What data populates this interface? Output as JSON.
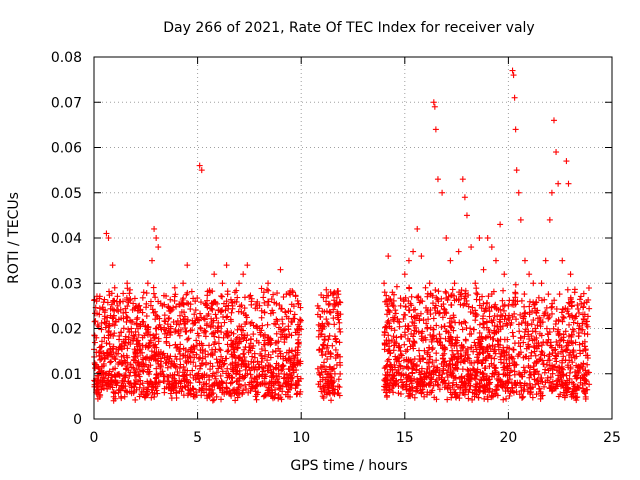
{
  "chart_data": {
    "type": "scatter",
    "title": "Day 266 of 2021, Rate Of TEC Index for receiver valy",
    "xlabel": "GPS time / hours",
    "ylabel": "ROTI / TECUs",
    "xlim": [
      0,
      25
    ],
    "ylim": [
      0,
      0.08
    ],
    "xticks": [
      0,
      5,
      10,
      15,
      20,
      25
    ],
    "xtick_labels": [
      "0",
      "5",
      "10",
      "15",
      "20",
      "25"
    ],
    "yticks": [
      0,
      0.01,
      0.02,
      0.03,
      0.04,
      0.05,
      0.06,
      0.07,
      0.08
    ],
    "ytick_labels": [
      "0",
      "0.01",
      "0.02",
      "0.03",
      "0.04",
      "0.05",
      "0.06",
      "0.07",
      "0.08"
    ],
    "grid": true,
    "marker": "+",
    "color": "#ff0000",
    "series": [
      {
        "name": "ROTI",
        "points": [
          [
            0.1,
            0.012
          ],
          [
            0.3,
            0.015
          ],
          [
            0.5,
            0.018
          ],
          [
            0.6,
            0.041
          ],
          [
            0.7,
            0.04
          ],
          [
            0.9,
            0.034
          ],
          [
            1.0,
            0.029
          ],
          [
            1.2,
            0.022
          ],
          [
            1.4,
            0.026
          ],
          [
            1.6,
            0.03
          ],
          [
            1.8,
            0.02
          ],
          [
            2.0,
            0.015
          ],
          [
            2.2,
            0.012
          ],
          [
            2.4,
            0.028
          ],
          [
            2.6,
            0.03
          ],
          [
            2.8,
            0.035
          ],
          [
            2.9,
            0.042
          ],
          [
            3.0,
            0.04
          ],
          [
            3.1,
            0.038
          ],
          [
            3.3,
            0.025
          ],
          [
            3.5,
            0.018
          ],
          [
            3.7,
            0.02
          ],
          [
            3.9,
            0.029
          ],
          [
            4.1,
            0.015
          ],
          [
            4.3,
            0.03
          ],
          [
            4.5,
            0.034
          ],
          [
            4.8,
            0.005
          ],
          [
            5.0,
            0.022
          ],
          [
            5.1,
            0.056
          ],
          [
            5.2,
            0.055
          ],
          [
            5.4,
            0.012
          ],
          [
            5.6,
            0.028
          ],
          [
            5.8,
            0.032
          ],
          [
            6.0,
            0.024
          ],
          [
            6.2,
            0.03
          ],
          [
            6.4,
            0.034
          ],
          [
            6.6,
            0.022
          ],
          [
            6.8,
            0.028
          ],
          [
            7.0,
            0.03
          ],
          [
            7.2,
            0.032
          ],
          [
            7.4,
            0.034
          ],
          [
            7.6,
            0.026
          ],
          [
            7.8,
            0.005
          ],
          [
            8.0,
            0.02
          ],
          [
            8.2,
            0.028
          ],
          [
            8.4,
            0.03
          ],
          [
            8.6,
            0.024
          ],
          [
            8.8,
            0.022
          ],
          [
            9.0,
            0.033
          ],
          [
            9.3,
            0.018
          ],
          [
            9.6,
            0.028
          ],
          [
            9.9,
            0.02
          ],
          [
            10.8,
            0.025
          ],
          [
            11.0,
            0.02
          ],
          [
            11.2,
            0.026
          ],
          [
            11.4,
            0.01
          ],
          [
            11.6,
            0.028
          ],
          [
            11.8,
            0.022
          ],
          [
            14.0,
            0.03
          ],
          [
            14.2,
            0.036
          ],
          [
            14.4,
            0.028
          ],
          [
            14.6,
            0.018
          ],
          [
            14.8,
            0.025
          ],
          [
            15.0,
            0.032
          ],
          [
            15.2,
            0.035
          ],
          [
            15.4,
            0.037
          ],
          [
            15.6,
            0.042
          ],
          [
            15.8,
            0.036
          ],
          [
            16.0,
            0.029
          ],
          [
            16.2,
            0.03
          ],
          [
            16.4,
            0.07
          ],
          [
            16.45,
            0.069
          ],
          [
            16.5,
            0.064
          ],
          [
            16.6,
            0.053
          ],
          [
            16.8,
            0.05
          ],
          [
            17.0,
            0.04
          ],
          [
            17.2,
            0.035
          ],
          [
            17.4,
            0.03
          ],
          [
            17.6,
            0.037
          ],
          [
            17.8,
            0.053
          ],
          [
            17.9,
            0.049
          ],
          [
            18.0,
            0.045
          ],
          [
            18.2,
            0.038
          ],
          [
            18.4,
            0.03
          ],
          [
            18.6,
            0.04
          ],
          [
            18.8,
            0.033
          ],
          [
            19.0,
            0.04
          ],
          [
            19.2,
            0.038
          ],
          [
            19.4,
            0.035
          ],
          [
            19.6,
            0.043
          ],
          [
            19.8,
            0.032
          ],
          [
            20.0,
            0.025
          ],
          [
            20.2,
            0.077
          ],
          [
            20.25,
            0.076
          ],
          [
            20.3,
            0.071
          ],
          [
            20.35,
            0.064
          ],
          [
            20.4,
            0.055
          ],
          [
            20.5,
            0.05
          ],
          [
            20.6,
            0.044
          ],
          [
            20.8,
            0.035
          ],
          [
            21.0,
            0.032
          ],
          [
            21.2,
            0.03
          ],
          [
            21.4,
            0.024
          ],
          [
            21.6,
            0.03
          ],
          [
            21.8,
            0.035
          ],
          [
            22.0,
            0.044
          ],
          [
            22.1,
            0.05
          ],
          [
            22.2,
            0.066
          ],
          [
            22.3,
            0.059
          ],
          [
            22.4,
            0.052
          ],
          [
            22.6,
            0.035
          ],
          [
            22.8,
            0.057
          ],
          [
            22.9,
            0.052
          ],
          [
            23.0,
            0.032
          ],
          [
            23.2,
            0.028
          ],
          [
            23.4,
            0.02
          ],
          [
            23.6,
            0.015
          ],
          [
            23.8,
            0.012
          ]
        ]
      }
    ]
  }
}
